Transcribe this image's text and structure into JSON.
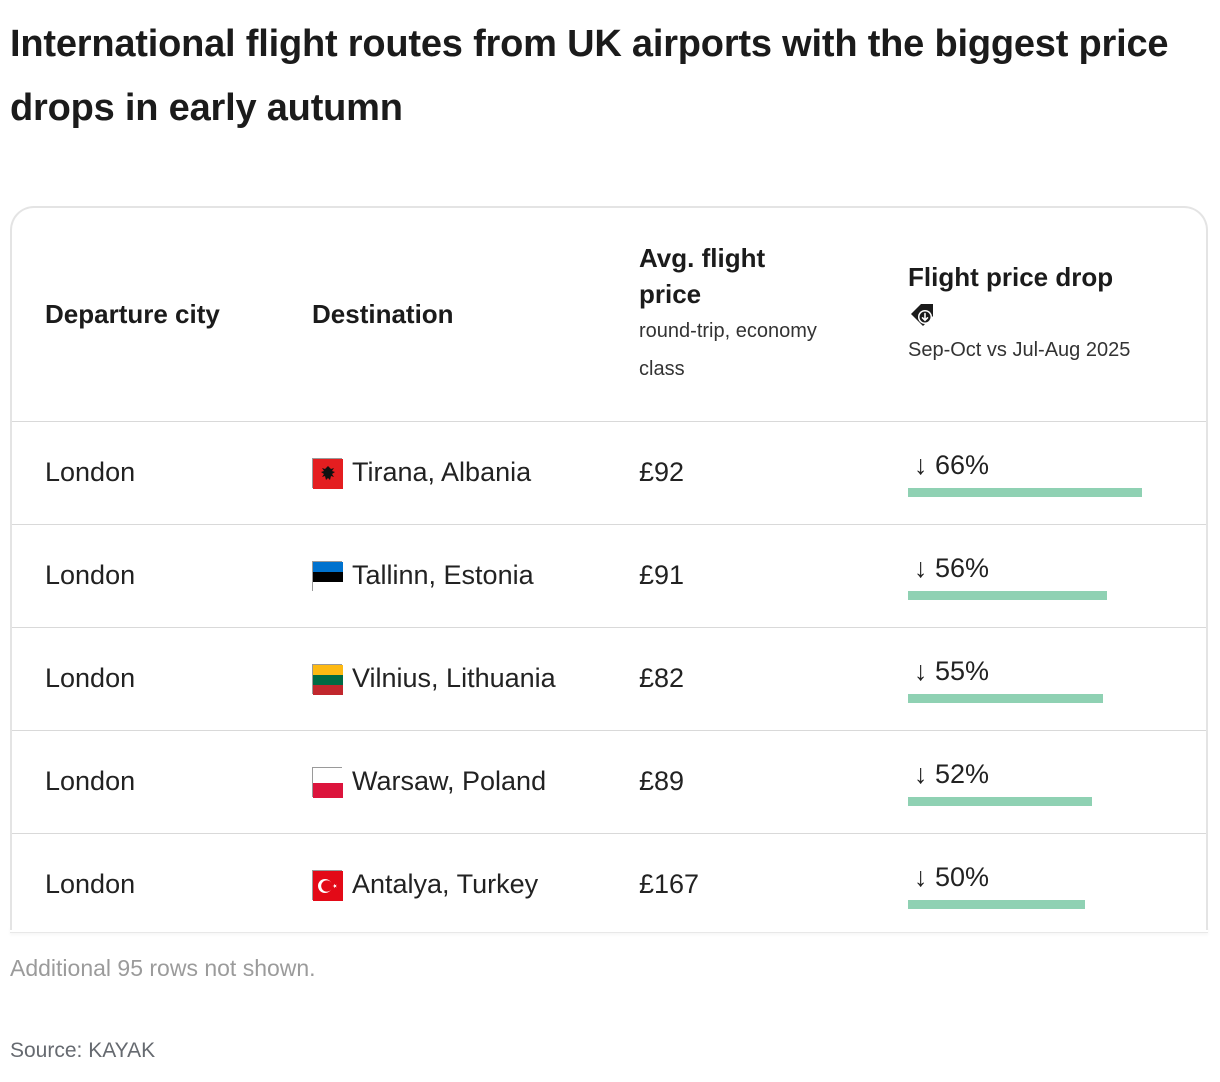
{
  "title": "International flight routes from UK airports with the biggest price drops in early autumn",
  "chart_data": {
    "type": "table",
    "columns": [
      {
        "key": "departure",
        "label": "Departure city",
        "sublabel": ""
      },
      {
        "key": "destination",
        "label": "Destination",
        "sublabel": ""
      },
      {
        "key": "price",
        "label": "Avg. flight price",
        "sublabel": "round-trip, economy class"
      },
      {
        "key": "drop",
        "label": "Flight price drop",
        "sublabel": "Sep-Oct vs Jul-Aug 2025",
        "icon": "price-tag-down-icon"
      }
    ],
    "rows": [
      {
        "departure": "London",
        "destination": "Tirana, Albania",
        "flag": "albania-flag",
        "price": "£92",
        "drop_label": "↓ 66%",
        "drop_value": 66
      },
      {
        "departure": "London",
        "destination": "Tallinn, Estonia",
        "flag": "estonia-flag",
        "price": "£91",
        "drop_label": "↓ 56%",
        "drop_value": 56
      },
      {
        "departure": "London",
        "destination": "Vilnius, Lithuania",
        "flag": "lithuania-flag",
        "price": "£82",
        "drop_label": "↓ 55%",
        "drop_value": 55
      },
      {
        "departure": "London",
        "destination": "Warsaw, Poland",
        "flag": "poland-flag",
        "price": "£89",
        "drop_label": "↓ 52%",
        "drop_value": 52
      },
      {
        "departure": "London",
        "destination": "Antalya, Turkey",
        "flag": "turkey-flag",
        "price": "£167",
        "drop_label": "↓ 50%",
        "drop_value": 50
      }
    ],
    "drop_max": 66,
    "bar_color": "#8fd1b3"
  },
  "footnote": "Additional 95 rows not shown.",
  "source": "Source: KAYAK"
}
